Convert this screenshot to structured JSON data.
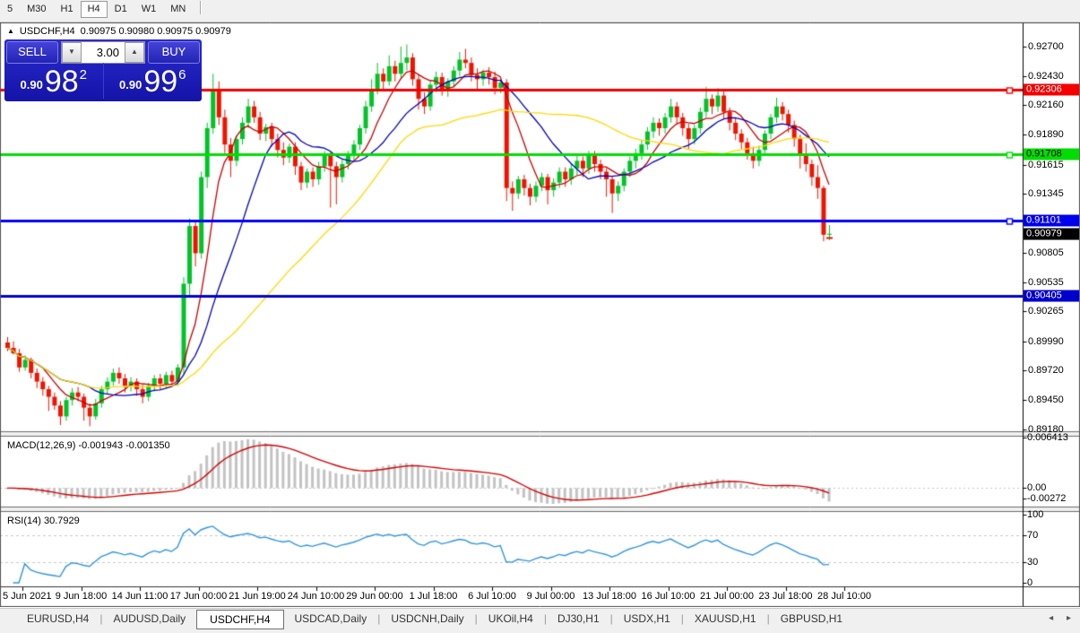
{
  "toolbar": {
    "timeframes": [
      {
        "label": "5",
        "active": false
      },
      {
        "label": "M30",
        "active": false
      },
      {
        "label": "H1",
        "active": false
      },
      {
        "label": "H4",
        "active": true
      },
      {
        "label": "D1",
        "active": false
      },
      {
        "label": "W1",
        "active": false
      },
      {
        "label": "MN",
        "active": false
      }
    ]
  },
  "symbol_line": {
    "marker": "▲",
    "symbol": "USDCHF,H4",
    "quotes": "0.90975 0.90980 0.90975 0.90979"
  },
  "trade_panel": {
    "sell_label": "SELL",
    "buy_label": "BUY",
    "volume": "3.00",
    "spin_down": "▼",
    "spin_up": "▲",
    "sell": {
      "base": "0.90",
      "big": "98",
      "sup": "2"
    },
    "buy": {
      "base": "0.90",
      "big": "99",
      "sup": "6"
    }
  },
  "price_axis": {
    "ticks": [
      "0.92700",
      "0.92430",
      "0.92160",
      "0.91890",
      "0.91615",
      "0.91345",
      "0.91075",
      "0.90805",
      "0.90535",
      "0.90265",
      "0.89990",
      "0.89720",
      "0.89450",
      "0.89180"
    ]
  },
  "levels": [
    {
      "label": "0.92306",
      "price": 0.92306,
      "color": "#f40000",
      "tag_bg": "#f40000",
      "tag_fg": "#ffffff",
      "handle": true
    },
    {
      "label": "0.91708",
      "price": 0.91708,
      "color": "#00dd00",
      "tag_bg": "#00dd00",
      "tag_fg": "#000000",
      "handle": true
    },
    {
      "label": "0.91101",
      "price": 0.91101,
      "color": "#0000ff",
      "tag_bg": "#0000ee",
      "tag_fg": "#ffffff",
      "handle": true
    },
    {
      "label": "0.90405",
      "price": 0.90405,
      "color": "#0000cc",
      "tag_bg": "#0000cc",
      "tag_fg": "#ffffff",
      "handle": false
    }
  ],
  "current_price": {
    "label": "0.90979",
    "price": 0.90979,
    "tag_bg": "#000000",
    "tag_fg": "#ffffff"
  },
  "macd_pane": {
    "label": "MACD(12,26,9) -0.001943 -0.001350",
    "axis": {
      "top": "0.006413",
      "zero": "0.00",
      "bottom": "-0.00272"
    },
    "histogram_color": "#c3c3c3",
    "signal_color": "#d40000"
  },
  "rsi_pane": {
    "label": "RSI(14) 30.7929",
    "axis": [
      "100",
      "70",
      "30",
      "0"
    ],
    "level_high": 70,
    "level_low": 30,
    "line_color": "#2f96e0"
  },
  "time_axis": [
    "5 Jun 2021",
    "9 Jun 18:00",
    "14 Jun 11:00",
    "17 Jun 00:00",
    "21 Jun 19:00",
    "24 Jun 10:00",
    "29 Jun 00:00",
    "1 Jul 18:00",
    "6 Jul 10:00",
    "9 Jul 00:00",
    "13 Jul 18:00",
    "16 Jul 10:00",
    "21 Jul 00:00",
    "23 Jul 18:00",
    "28 Jul 10:00"
  ],
  "tabs": {
    "items": [
      {
        "label": "EURUSD,H4",
        "active": false
      },
      {
        "label": "AUDUSD,Daily",
        "active": false
      },
      {
        "label": "USDCHF,H4",
        "active": true
      },
      {
        "label": "USDCAD,Daily",
        "active": false
      },
      {
        "label": "USDCNH,Daily",
        "active": false
      },
      {
        "label": "UKOil,H4",
        "active": false
      },
      {
        "label": "DJ30,H1",
        "active": false
      },
      {
        "label": "USDX,H1",
        "active": false
      },
      {
        "label": "XAUUSD,H1",
        "active": false
      },
      {
        "label": "GBPUSD,H1",
        "active": false
      }
    ],
    "nav": "◂ ▸"
  },
  "chart_data": {
    "type": "candlestick",
    "symbol": "USDCHF",
    "timeframe": "H4",
    "bull_color": "#00c428",
    "bear_color": "#f01400",
    "moving_averages": [
      {
        "period": 7,
        "color": "#c80000"
      },
      {
        "period": 15,
        "color": "#0000bb"
      },
      {
        "period": 38,
        "color": "#ffd800"
      }
    ],
    "macd_params": [
      12,
      26,
      9
    ],
    "rsi_period": 14,
    "ohlc_format": [
      "open",
      "high",
      "low",
      "close"
    ],
    "candles": [
      [
        0.8998,
        0.9003,
        0.899,
        0.8993
      ],
      [
        0.8993,
        0.8999,
        0.8987,
        0.8988
      ],
      [
        0.8988,
        0.8992,
        0.8971,
        0.8975
      ],
      [
        0.8975,
        0.8986,
        0.8972,
        0.8982
      ],
      [
        0.8982,
        0.8984,
        0.8965,
        0.897
      ],
      [
        0.897,
        0.8974,
        0.8956,
        0.8962
      ],
      [
        0.8962,
        0.8966,
        0.8949,
        0.8955
      ],
      [
        0.8955,
        0.8958,
        0.8935,
        0.8948
      ],
      [
        0.8948,
        0.8952,
        0.8936,
        0.894
      ],
      [
        0.894,
        0.8944,
        0.8922,
        0.893
      ],
      [
        0.893,
        0.8948,
        0.8926,
        0.8945
      ],
      [
        0.8945,
        0.8956,
        0.894,
        0.8952
      ],
      [
        0.8952,
        0.8957,
        0.8944,
        0.8948
      ],
      [
        0.8948,
        0.8951,
        0.8926,
        0.8938
      ],
      [
        0.8938,
        0.8942,
        0.8921,
        0.893
      ],
      [
        0.893,
        0.8946,
        0.8927,
        0.8942
      ],
      [
        0.8942,
        0.8958,
        0.8938,
        0.8955
      ],
      [
        0.8955,
        0.8966,
        0.895,
        0.8962
      ],
      [
        0.8962,
        0.8974,
        0.8958,
        0.897
      ],
      [
        0.897,
        0.8975,
        0.896,
        0.8965
      ],
      [
        0.8965,
        0.8969,
        0.8952,
        0.8958
      ],
      [
        0.8958,
        0.8966,
        0.8953,
        0.8962
      ],
      [
        0.8962,
        0.8965,
        0.8949,
        0.8955
      ],
      [
        0.8955,
        0.8959,
        0.8942,
        0.8948
      ],
      [
        0.8948,
        0.8961,
        0.8944,
        0.8958
      ],
      [
        0.8958,
        0.8968,
        0.8953,
        0.8965
      ],
      [
        0.8965,
        0.8969,
        0.8955,
        0.896
      ],
      [
        0.896,
        0.8971,
        0.8956,
        0.8968
      ],
      [
        0.8968,
        0.8972,
        0.8957,
        0.8962
      ],
      [
        0.8962,
        0.8978,
        0.8958,
        0.8975
      ],
      [
        0.8975,
        0.9058,
        0.8968,
        0.9052
      ],
      [
        0.9052,
        0.9112,
        0.904,
        0.9105
      ],
      [
        0.9105,
        0.911,
        0.9068,
        0.908
      ],
      [
        0.908,
        0.9155,
        0.9075,
        0.915
      ],
      [
        0.915,
        0.92,
        0.914,
        0.9195
      ],
      [
        0.9195,
        0.9245,
        0.919,
        0.923
      ],
      [
        0.923,
        0.9238,
        0.9198,
        0.9205
      ],
      [
        0.9205,
        0.9212,
        0.9172,
        0.918
      ],
      [
        0.918,
        0.9186,
        0.915,
        0.9165
      ],
      [
        0.9165,
        0.9188,
        0.916,
        0.9185
      ],
      [
        0.9185,
        0.9205,
        0.918,
        0.92
      ],
      [
        0.92,
        0.9222,
        0.9195,
        0.9215
      ],
      [
        0.9215,
        0.922,
        0.92,
        0.9205
      ],
      [
        0.9205,
        0.921,
        0.9184,
        0.919
      ],
      [
        0.919,
        0.9199,
        0.9183,
        0.9196
      ],
      [
        0.9196,
        0.92,
        0.9178,
        0.9185
      ],
      [
        0.9185,
        0.919,
        0.9168,
        0.9175
      ],
      [
        0.9175,
        0.9182,
        0.9161,
        0.9168
      ],
      [
        0.9168,
        0.9181,
        0.9163,
        0.9178
      ],
      [
        0.9178,
        0.9182,
        0.9152,
        0.916
      ],
      [
        0.916,
        0.9164,
        0.9138,
        0.9145
      ],
      [
        0.9145,
        0.9158,
        0.914,
        0.9155
      ],
      [
        0.9155,
        0.9159,
        0.9141,
        0.9148
      ],
      [
        0.9148,
        0.9164,
        0.9143,
        0.916
      ],
      [
        0.916,
        0.9174,
        0.9155,
        0.917
      ],
      [
        0.917,
        0.9173,
        0.9122,
        0.916
      ],
      [
        0.916,
        0.9164,
        0.9125,
        0.915
      ],
      [
        0.915,
        0.9166,
        0.9145,
        0.9162
      ],
      [
        0.9162,
        0.9174,
        0.9157,
        0.917
      ],
      [
        0.917,
        0.9184,
        0.9165,
        0.918
      ],
      [
        0.918,
        0.9198,
        0.9175,
        0.9195
      ],
      [
        0.9195,
        0.922,
        0.919,
        0.9215
      ],
      [
        0.9215,
        0.924,
        0.921,
        0.923
      ],
      [
        0.923,
        0.9255,
        0.9226,
        0.9245
      ],
      [
        0.9245,
        0.925,
        0.923,
        0.9238
      ],
      [
        0.9238,
        0.9262,
        0.9234,
        0.9252
      ],
      [
        0.9252,
        0.9257,
        0.9238,
        0.9245
      ],
      [
        0.9245,
        0.927,
        0.924,
        0.9255
      ],
      [
        0.9255,
        0.9272,
        0.9248,
        0.926
      ],
      [
        0.926,
        0.9264,
        0.9234,
        0.924
      ],
      [
        0.924,
        0.9244,
        0.9212,
        0.9222
      ],
      [
        0.9222,
        0.9228,
        0.9208,
        0.9215
      ],
      [
        0.9215,
        0.9238,
        0.9211,
        0.9235
      ],
      [
        0.9235,
        0.9247,
        0.9228,
        0.9242
      ],
      [
        0.9242,
        0.9246,
        0.9225,
        0.923
      ],
      [
        0.923,
        0.9241,
        0.9224,
        0.9238
      ],
      [
        0.9238,
        0.9252,
        0.9233,
        0.9248
      ],
      [
        0.9248,
        0.9265,
        0.9243,
        0.9258
      ],
      [
        0.9258,
        0.9268,
        0.925,
        0.9255
      ],
      [
        0.9255,
        0.926,
        0.9238,
        0.9244
      ],
      [
        0.9244,
        0.925,
        0.923,
        0.924
      ],
      [
        0.924,
        0.9249,
        0.9234,
        0.9246
      ],
      [
        0.9246,
        0.9251,
        0.9235,
        0.9242
      ],
      [
        0.9242,
        0.9247,
        0.9226,
        0.9232
      ],
      [
        0.9232,
        0.924,
        0.9227,
        0.9237
      ],
      [
        0.9237,
        0.924,
        0.9128,
        0.914
      ],
      [
        0.914,
        0.9146,
        0.9119,
        0.9135
      ],
      [
        0.9135,
        0.9151,
        0.913,
        0.9148
      ],
      [
        0.9148,
        0.9152,
        0.9133,
        0.914
      ],
      [
        0.914,
        0.9144,
        0.9124,
        0.9132
      ],
      [
        0.9132,
        0.9146,
        0.9127,
        0.9142
      ],
      [
        0.9142,
        0.9154,
        0.9137,
        0.915
      ],
      [
        0.915,
        0.9153,
        0.9125,
        0.9138
      ],
      [
        0.9138,
        0.9149,
        0.9132,
        0.9145
      ],
      [
        0.9145,
        0.9159,
        0.914,
        0.9155
      ],
      [
        0.9155,
        0.9159,
        0.9141,
        0.9148
      ],
      [
        0.9148,
        0.9162,
        0.9143,
        0.9158
      ],
      [
        0.9158,
        0.917,
        0.9152,
        0.9165
      ],
      [
        0.9165,
        0.9169,
        0.915,
        0.9158
      ],
      [
        0.9158,
        0.9174,
        0.9153,
        0.917
      ],
      [
        0.917,
        0.9174,
        0.9155,
        0.9162
      ],
      [
        0.9162,
        0.9166,
        0.9148,
        0.9155
      ],
      [
        0.9155,
        0.9158,
        0.9132,
        0.9148
      ],
      [
        0.9148,
        0.9151,
        0.9117,
        0.9135
      ],
      [
        0.9135,
        0.9146,
        0.9128,
        0.9142
      ],
      [
        0.9142,
        0.9158,
        0.9137,
        0.9155
      ],
      [
        0.9155,
        0.9169,
        0.915,
        0.9165
      ],
      [
        0.9165,
        0.9176,
        0.9158,
        0.9172
      ],
      [
        0.9172,
        0.9184,
        0.9166,
        0.918
      ],
      [
        0.918,
        0.9196,
        0.9175,
        0.9192
      ],
      [
        0.9192,
        0.9205,
        0.9186,
        0.92
      ],
      [
        0.92,
        0.9204,
        0.9188,
        0.9195
      ],
      [
        0.9195,
        0.9209,
        0.919,
        0.9205
      ],
      [
        0.9205,
        0.9222,
        0.92,
        0.9215
      ],
      [
        0.9215,
        0.9219,
        0.9199,
        0.9205
      ],
      [
        0.9205,
        0.9209,
        0.9188,
        0.9195
      ],
      [
        0.9195,
        0.9199,
        0.9176,
        0.9185
      ],
      [
        0.9185,
        0.9198,
        0.918,
        0.9195
      ],
      [
        0.9195,
        0.9214,
        0.919,
        0.921
      ],
      [
        0.921,
        0.9233,
        0.9205,
        0.9222
      ],
      [
        0.9222,
        0.9226,
        0.9208,
        0.9215
      ],
      [
        0.9215,
        0.9232,
        0.921,
        0.9225
      ],
      [
        0.9225,
        0.9229,
        0.9204,
        0.921
      ],
      [
        0.921,
        0.9214,
        0.9193,
        0.92
      ],
      [
        0.92,
        0.9205,
        0.9184,
        0.919
      ],
      [
        0.919,
        0.9194,
        0.9176,
        0.9182
      ],
      [
        0.9182,
        0.9186,
        0.9166,
        0.9172
      ],
      [
        0.9172,
        0.9178,
        0.9158,
        0.9165
      ],
      [
        0.9165,
        0.9179,
        0.916,
        0.9175
      ],
      [
        0.9175,
        0.9193,
        0.917,
        0.919
      ],
      [
        0.919,
        0.9208,
        0.9185,
        0.9205
      ],
      [
        0.9205,
        0.9223,
        0.92,
        0.9215
      ],
      [
        0.9215,
        0.9219,
        0.9202,
        0.9208
      ],
      [
        0.9208,
        0.9212,
        0.9191,
        0.9198
      ],
      [
        0.9198,
        0.9202,
        0.9178,
        0.9185
      ],
      [
        0.9185,
        0.9189,
        0.9158,
        0.917
      ],
      [
        0.917,
        0.9181,
        0.9155,
        0.9162
      ],
      [
        0.9162,
        0.9166,
        0.9142,
        0.915
      ],
      [
        0.915,
        0.9161,
        0.913,
        0.914
      ],
      [
        0.914,
        0.9142,
        0.9091,
        0.9097
      ],
      [
        0.9097,
        0.9106,
        0.9092,
        0.90979
      ]
    ]
  }
}
